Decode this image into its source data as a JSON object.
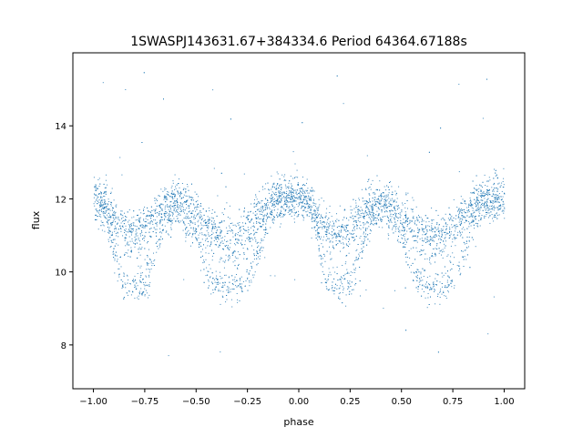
{
  "chart_data": {
    "type": "scatter",
    "title": "1SWASPJ143631.67+384334.6 Period 64364.67188s",
    "xlabel": "phase",
    "ylabel": "flux",
    "xlim": [
      -1.1,
      1.1
    ],
    "ylim": [
      6.8,
      16.0
    ],
    "xticks": [
      -1.0,
      -0.75,
      -0.5,
      -0.25,
      0.0,
      0.25,
      0.5,
      0.75,
      1.0
    ],
    "xtick_labels": [
      "−1.00",
      "−0.75",
      "−0.50",
      "−0.25",
      "0.00",
      "0.25",
      "0.50",
      "0.75",
      "1.00"
    ],
    "yticks": [
      8,
      10,
      12,
      14
    ],
    "ytick_labels": [
      "8",
      "10",
      "12",
      "14"
    ],
    "grid": false,
    "legend": "none",
    "marker_color": "#1f77b4",
    "light_curve_profile": {
      "phase": [
        0.0,
        0.05,
        0.1,
        0.15,
        0.2,
        0.25,
        0.3,
        0.35,
        0.4,
        0.45,
        0.5,
        0.55,
        0.6,
        0.65,
        0.7,
        0.75,
        0.8,
        0.85,
        0.9,
        0.95,
        1.0
      ],
      "flux_upper": [
        12.0,
        11.9,
        11.5,
        11.1,
        11.1,
        11.3,
        11.6,
        11.9,
        12.0,
        11.9,
        11.6,
        11.3,
        11.1,
        11.0,
        11.0,
        11.2,
        11.6,
        11.9,
        12.0,
        12.0,
        12.0
      ],
      "flux_lower": [
        12.0,
        11.8,
        10.5,
        9.6,
        9.6,
        9.6,
        10.5,
        11.4,
        11.6,
        11.3,
        11.0,
        10.0,
        9.6,
        9.6,
        9.6,
        9.7,
        10.5,
        11.4,
        11.8,
        12.0,
        12.0
      ]
    }
  }
}
